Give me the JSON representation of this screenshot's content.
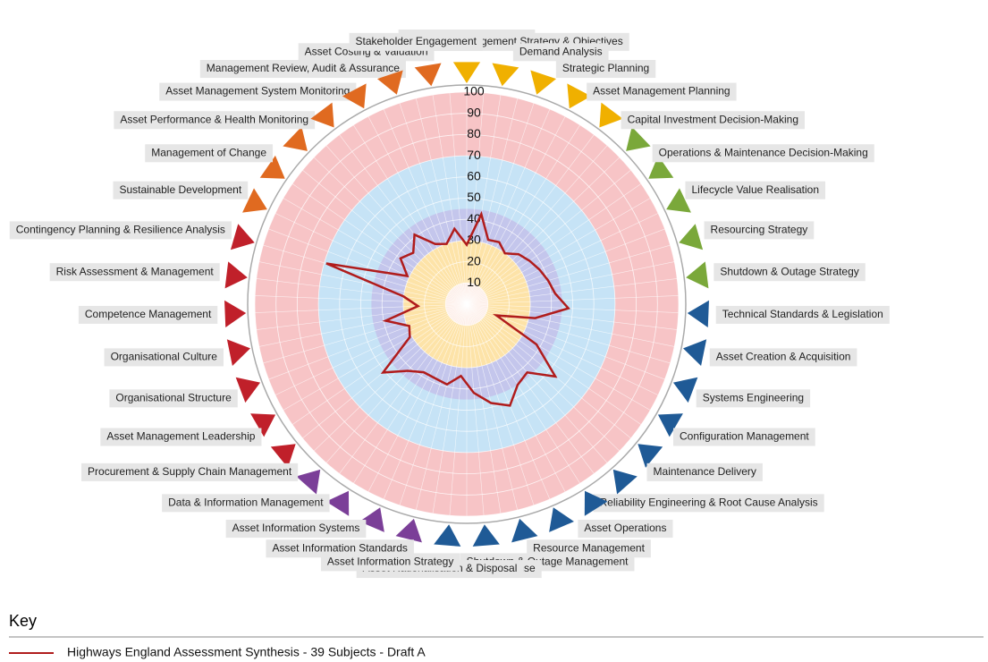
{
  "chart_data": {
    "type": "radar",
    "categories": [
      "Asset Management Policy",
      "Asset Management Strategy & Objectives",
      "Demand Analysis",
      "Strategic Planning",
      "Asset Management Planning",
      "Capital Investment Decision-Making",
      "Operations & Maintenance Decision-Making",
      "Lifecycle Value Realisation",
      "Resourcing Strategy",
      "Shutdown & Outage Strategy",
      "Technical Standards & Legislation",
      "Asset Creation & Acquisition",
      "Systems Engineering",
      "Configuration Management",
      "Maintenance Delivery",
      "Reliability Engineering & Root Cause Analysis",
      "Asset Operations",
      "Resource Management",
      "Shutdown & Outage Management",
      "Incident Response",
      "Asset Rationalisation & Disposal",
      "Asset Information Strategy",
      "Asset Information Standards",
      "Asset Information Systems",
      "Data & Information Management",
      "Procurement & Supply Chain Management",
      "Asset Management Leadership",
      "Organisational Structure",
      "Organisational Culture",
      "Competence Management",
      "Risk Assessment & Management",
      "Contingency Planning & Resilience Analysis",
      "Sustainable Development",
      "Management of Change",
      "Asset Performance & Health Monitoring",
      "Asset Management System Monitoring",
      "Management Review, Audit & Assurance",
      "Asset Costing & Valuation",
      "Stakeholder Engagement"
    ],
    "category_colors": [
      "#f0b000",
      "#f0b000",
      "#f0b000",
      "#f0b000",
      "#f0b000",
      "#7aa83a",
      "#7aa83a",
      "#7aa83a",
      "#7aa83a",
      "#7aa83a",
      "#1f5a96",
      "#1f5a96",
      "#1f5a96",
      "#1f5a96",
      "#1f5a96",
      "#1f5a96",
      "#1f5a96",
      "#1f5a96",
      "#1f5a96",
      "#1f5a96",
      "#1f5a96",
      "#7b3f98",
      "#7b3f98",
      "#7b3f98",
      "#7b3f98",
      "#c0202a",
      "#c0202a",
      "#c0202a",
      "#c0202a",
      "#c0202a",
      "#c0202a",
      "#c0202a",
      "#e06a20",
      "#e06a20",
      "#e06a20",
      "#e06a20",
      "#e06a20",
      "#e06a20",
      "#e06a20"
    ],
    "series": [
      {
        "name": "Highways England Assessment Synthesis - 39 Subjects - Draft A",
        "color": "#b01c1c",
        "values": [
          28,
          43,
          32,
          33,
          30,
          34,
          36,
          38,
          40,
          42,
          48,
          33,
          15,
          38,
          54,
          43,
          45,
          52,
          48,
          42,
          34,
          39,
          38,
          38,
          42,
          51,
          31,
          29,
          39,
          23,
          30,
          69,
          31,
          38,
          35,
          41,
          32,
          30,
          36
        ]
      }
    ],
    "rlim": [
      0,
      100
    ],
    "rticks": [
      10,
      20,
      30,
      40,
      50,
      60,
      70,
      80,
      90,
      100
    ],
    "bands": [
      {
        "from": 0,
        "to": 30,
        "color": "#fde3a8"
      },
      {
        "from": 30,
        "to": 45,
        "color": "#c4c6ec"
      },
      {
        "from": 45,
        "to": 70,
        "color": "#c6e3f6"
      },
      {
        "from": 70,
        "to": 100,
        "color": "#f7c4c6"
      }
    ],
    "legend_title": "Key"
  }
}
